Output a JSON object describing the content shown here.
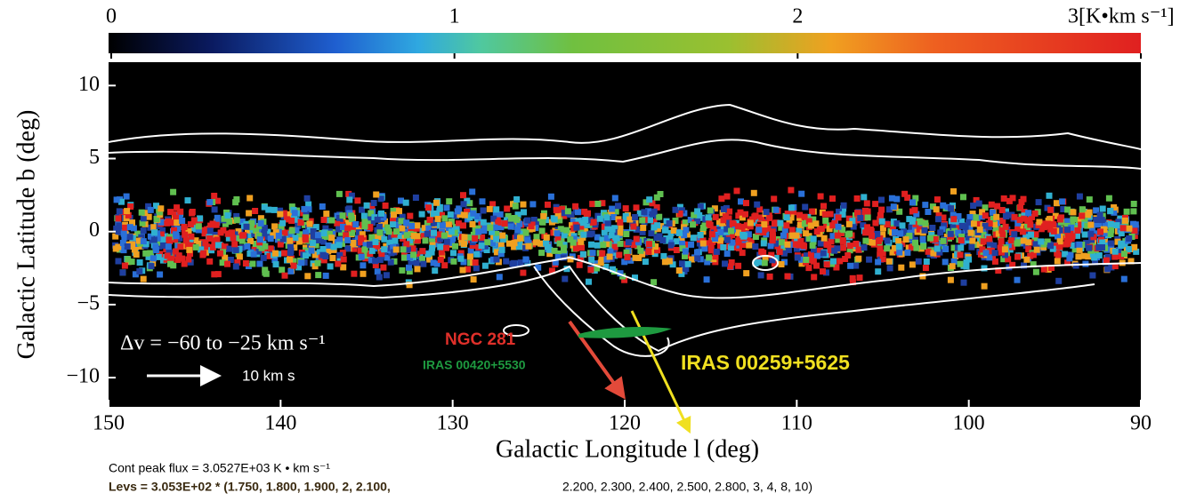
{
  "chart_data": {
    "type": "map",
    "xlabel": "Galactic Longitude l (deg)",
    "ylabel": "Galactic Latitude b (deg)",
    "xlim": [
      150,
      90
    ],
    "xticks": [
      150,
      140,
      130,
      120,
      110,
      100,
      90
    ],
    "ylim": [
      -12,
      11.6
    ],
    "yticks": [
      {
        "value": 10,
        "label": "10"
      },
      {
        "value": 5,
        "label": "5"
      },
      {
        "value": 0,
        "label": "0"
      },
      {
        "value": -5,
        "label": "−5"
      },
      {
        "value": -10,
        "label": "−10"
      }
    ],
    "colorbar": {
      "lim": [
        0,
        3
      ],
      "ticks": [
        0,
        1,
        2,
        3
      ],
      "unit": "[K•km s⁻¹]"
    },
    "annotations": {
      "velocity_range": "Δv = −60 to −25  km s⁻¹",
      "vector_scale": "10 km s",
      "source_1": "NGC 281",
      "source_2": "IRAS 00420+5530",
      "source_3": "IRAS 00259+5625"
    },
    "footer": {
      "peak_flux": "Cont peak flux =  3.0527E+03 K • km s⁻¹",
      "levels_1": "Levs = 3.053E+02 * (1.750, 1.800, 1.900, 2, 2.100,",
      "levels_2": "2.200, 2.300, 2.400, 2.500, 2.800, 3, 4, 8, 10)"
    }
  }
}
